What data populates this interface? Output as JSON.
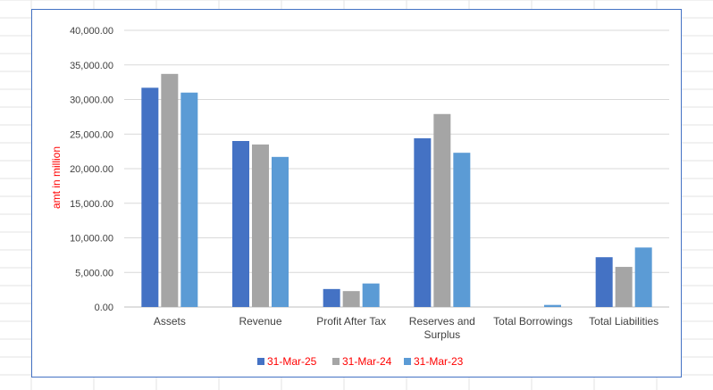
{
  "chart_data": {
    "type": "bar",
    "categories": [
      "Assets",
      "Revenue",
      "Profit After Tax",
      "Reserves and Surplus",
      "Total Borrowings",
      "Total Liabilities"
    ],
    "category_lines": [
      [
        "Assets"
      ],
      [
        "Revenue"
      ],
      [
        "Profit After Tax"
      ],
      [
        "Reserves and",
        "Surplus"
      ],
      [
        "Total Borrowings"
      ],
      [
        "Total Liabilities"
      ]
    ],
    "series": [
      {
        "name": "31-Mar-25",
        "color": "#4472c4",
        "values": [
          31700,
          24000,
          2600,
          24400,
          0,
          7200
        ]
      },
      {
        "name": "31-Mar-24",
        "color": "#a5a5a5",
        "values": [
          33700,
          23500,
          2300,
          27900,
          0,
          5800
        ]
      },
      {
        "name": "31-Mar-23",
        "color": "#5b9bd5",
        "values": [
          31000,
          21700,
          3400,
          22300,
          300,
          8600
        ]
      }
    ],
    "ylabel": "amt in million",
    "ylabel_color": "#ff0000",
    "legend_text_color": "#ff0000",
    "ylim": [
      0,
      40000
    ],
    "yticks": [
      "0.00",
      "5,000.00",
      "10,000.00",
      "15,000.00",
      "20,000.00",
      "25,000.00",
      "30,000.00",
      "35,000.00",
      "40,000.00"
    ],
    "grid": true,
    "legend_position": "bottom"
  }
}
